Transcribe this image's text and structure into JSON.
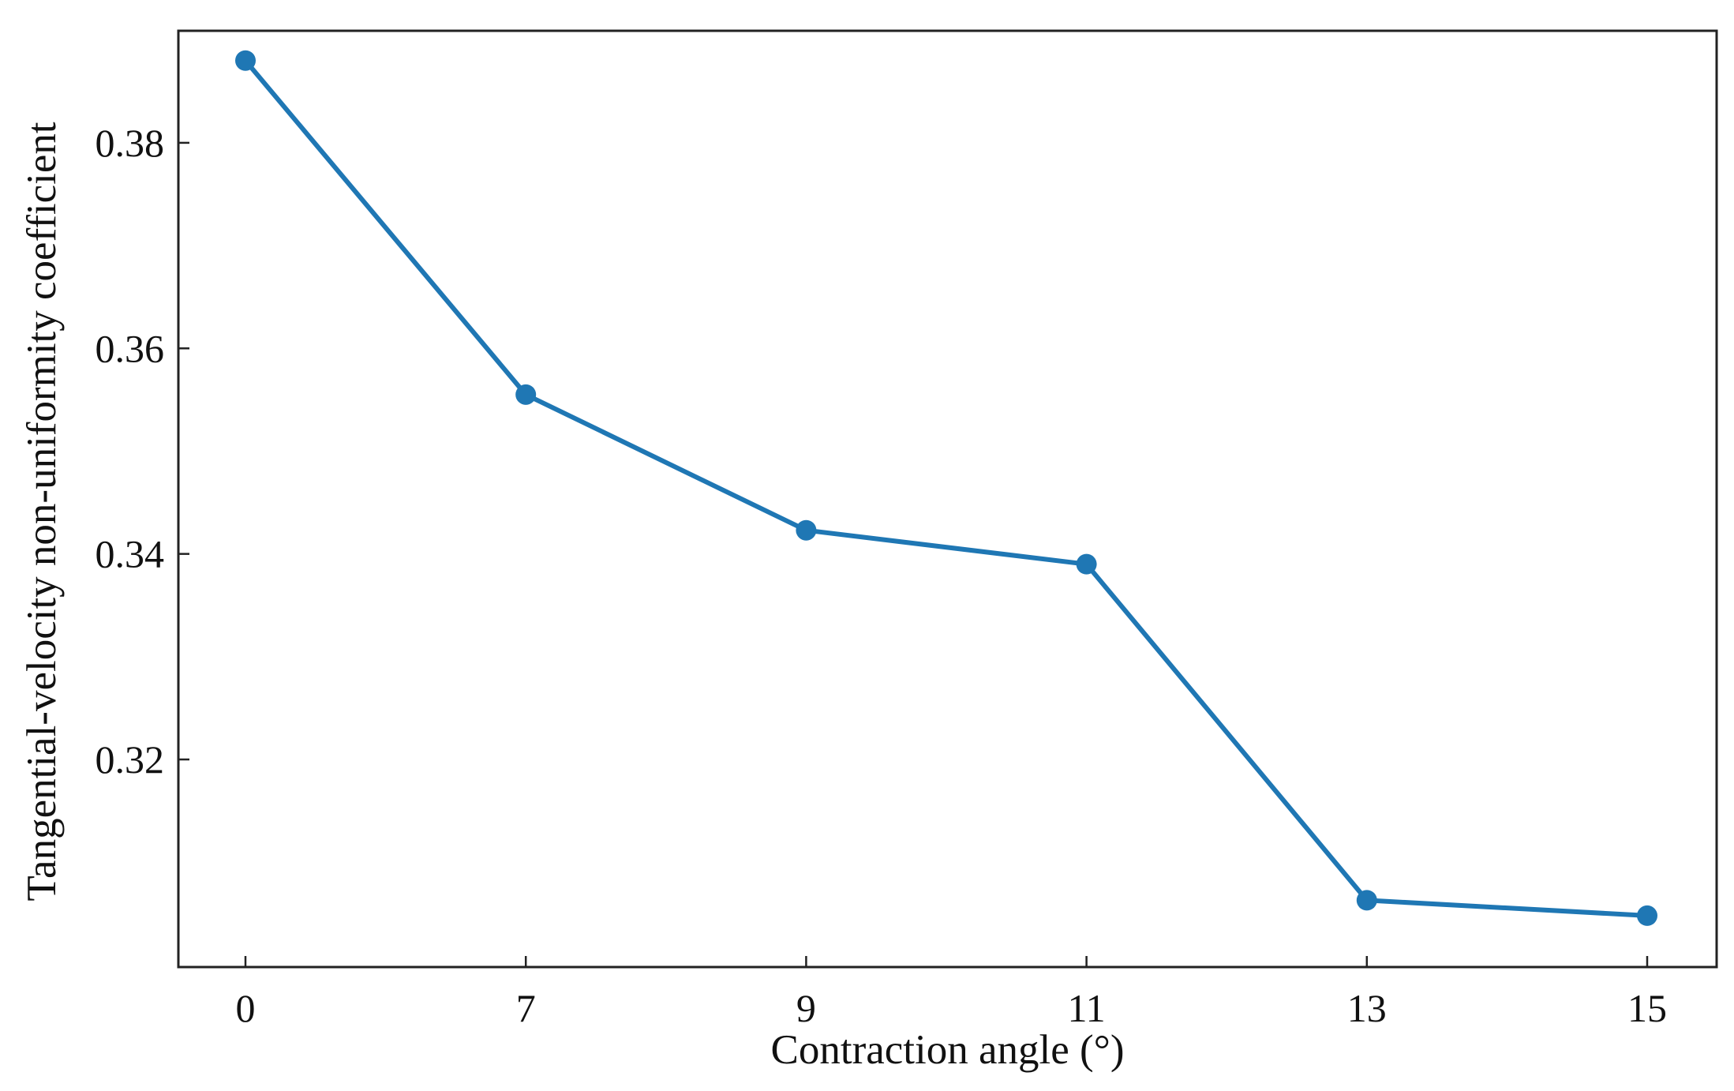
{
  "chart_data": {
    "type": "line",
    "title": "",
    "xlabel": "Contraction angle (°)",
    "ylabel": "Tangential-velocity non-uniformity coefficient",
    "x_axis_kind": "categorical",
    "categories": [
      "0",
      "7",
      "9",
      "11",
      "13",
      "15"
    ],
    "series": [
      {
        "values": [
          0.388,
          0.3555,
          0.3423,
          0.339,
          0.3063,
          0.3048
        ],
        "color": "#1f77b4",
        "marker": "circle"
      }
    ],
    "ylim": [
      0.2998,
      0.3909
    ],
    "yticks": [
      0.32,
      0.34,
      0.36,
      0.38
    ],
    "ytick_labels": [
      "0.32",
      "0.34",
      "0.36",
      "0.38"
    ],
    "grid": false,
    "legend": null
  }
}
